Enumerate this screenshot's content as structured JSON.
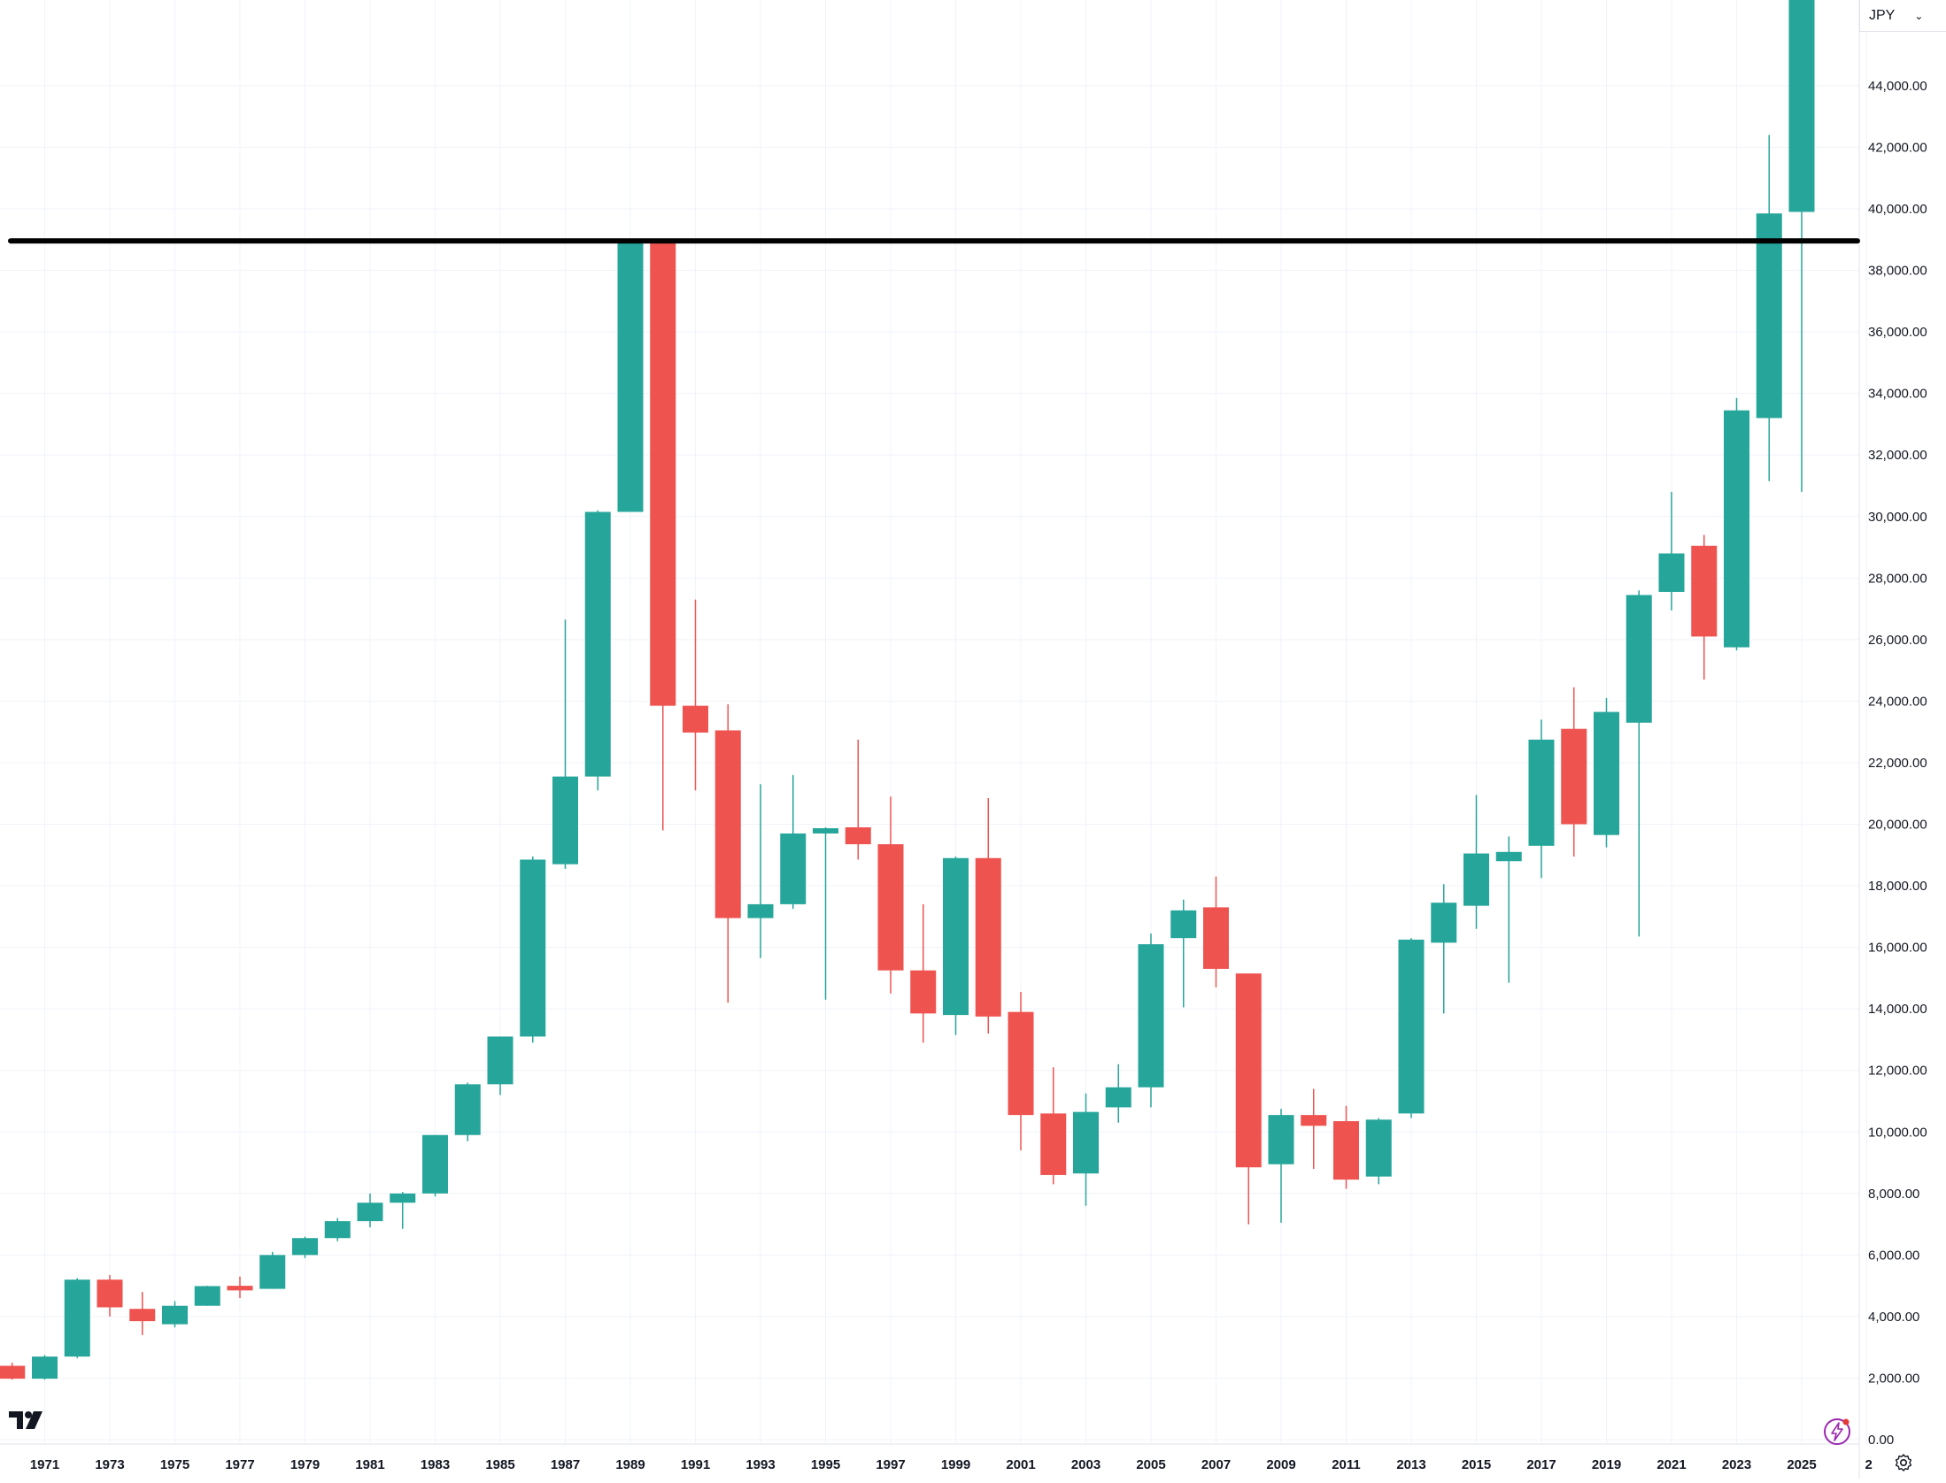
{
  "header": {
    "currency": "JPY"
  },
  "colors": {
    "up": "#26a69a",
    "down": "#ef5350",
    "grid": "#f0f3fa",
    "axis": "#e0e3eb",
    "level_line": "#000000",
    "flash_icon": "#9c27b0"
  },
  "icons": {
    "logo": "tradingview-logo-icon",
    "flash": "lightning-circle-icon",
    "settings": "gear-icon",
    "currency_dropdown": "chevron-down-icon"
  },
  "chart_data": {
    "type": "candlestick",
    "interval": "yearly",
    "y_axis": {
      "min": 0,
      "max": 47000,
      "position": "right",
      "ticks": [
        "0.00",
        "2,000.00",
        "4,000.00",
        "6,000.00",
        "8,000.00",
        "10,000.00",
        "12,000.00",
        "14,000.00",
        "16,000.00",
        "18,000.00",
        "20,000.00",
        "22,000.00",
        "24,000.00",
        "26,000.00",
        "28,000.00",
        "30,000.00",
        "32,000.00",
        "34,000.00",
        "36,000.00",
        "38,000.00",
        "40,000.00",
        "42,000.00",
        "44,000.00"
      ]
    },
    "x_axis": {
      "ticks": [
        "1971",
        "1973",
        "1975",
        "1977",
        "1979",
        "1981",
        "1983",
        "1985",
        "1987",
        "1989",
        "1991",
        "1993",
        "1995",
        "1997",
        "1999",
        "2001",
        "2003",
        "2005",
        "2007",
        "2009",
        "2011",
        "2013",
        "2015",
        "2017",
        "2019",
        "2021",
        "2023",
        "2025",
        "2"
      ]
    },
    "grid": true,
    "horizontal_line": {
      "value": 38957
    },
    "candles": [
      {
        "year": 1970,
        "open": 2400,
        "high": 2500,
        "low": 1950,
        "close": 1980
      },
      {
        "year": 1971,
        "open": 1980,
        "high": 2750,
        "low": 1950,
        "close": 2700
      },
      {
        "year": 1972,
        "open": 2700,
        "high": 5250,
        "low": 2650,
        "close": 5200
      },
      {
        "year": 1973,
        "open": 5200,
        "high": 5350,
        "low": 4000,
        "close": 4300
      },
      {
        "year": 1974,
        "open": 4250,
        "high": 4800,
        "low": 3400,
        "close": 3850
      },
      {
        "year": 1975,
        "open": 3750,
        "high": 4500,
        "low": 3650,
        "close": 4350
      },
      {
        "year": 1976,
        "open": 4350,
        "high": 5000,
        "low": 4350,
        "close": 4990
      },
      {
        "year": 1977,
        "open": 5000,
        "high": 5300,
        "low": 4600,
        "close": 4850
      },
      {
        "year": 1978,
        "open": 4900,
        "high": 6100,
        "low": 4900,
        "close": 6000
      },
      {
        "year": 1979,
        "open": 6000,
        "high": 6600,
        "low": 5900,
        "close": 6550
      },
      {
        "year": 1980,
        "open": 6550,
        "high": 7200,
        "low": 6450,
        "close": 7100
      },
      {
        "year": 1981,
        "open": 7100,
        "high": 8000,
        "low": 6900,
        "close": 7700
      },
      {
        "year": 1982,
        "open": 7700,
        "high": 8050,
        "low": 6850,
        "close": 8000
      },
      {
        "year": 1983,
        "open": 8000,
        "high": 9900,
        "low": 7900,
        "close": 9900
      },
      {
        "year": 1984,
        "open": 9900,
        "high": 11600,
        "low": 9700,
        "close": 11550
      },
      {
        "year": 1985,
        "open": 11550,
        "high": 13100,
        "low": 11200,
        "close": 13100
      },
      {
        "year": 1986,
        "open": 13100,
        "high": 18950,
        "low": 12900,
        "close": 18850
      },
      {
        "year": 1987,
        "open": 18700,
        "high": 26650,
        "low": 18550,
        "close": 21550
      },
      {
        "year": 1988,
        "open": 21550,
        "high": 30200,
        "low": 21100,
        "close": 30150
      },
      {
        "year": 1989,
        "open": 30150,
        "high": 38957,
        "low": 30150,
        "close": 38915
      },
      {
        "year": 1990,
        "open": 38915,
        "high": 38950,
        "low": 19800,
        "close": 23850
      },
      {
        "year": 1991,
        "open": 23850,
        "high": 27300,
        "low": 21100,
        "close": 22980
      },
      {
        "year": 1992,
        "open": 23050,
        "high": 23900,
        "low": 14200,
        "close": 16950
      },
      {
        "year": 1993,
        "open": 16950,
        "high": 21300,
        "low": 15650,
        "close": 17400
      },
      {
        "year": 1994,
        "open": 17400,
        "high": 21600,
        "low": 17250,
        "close": 19700
      },
      {
        "year": 1995,
        "open": 19700,
        "high": 19900,
        "low": 14300,
        "close": 19870
      },
      {
        "year": 1996,
        "open": 19900,
        "high": 22750,
        "low": 18850,
        "close": 19350
      },
      {
        "year": 1997,
        "open": 19350,
        "high": 20900,
        "low": 14500,
        "close": 15250
      },
      {
        "year": 1998,
        "open": 15250,
        "high": 17400,
        "low": 12900,
        "close": 13850
      },
      {
        "year": 1999,
        "open": 13800,
        "high": 18950,
        "low": 13150,
        "close": 18900
      },
      {
        "year": 2000,
        "open": 18900,
        "high": 20850,
        "low": 13200,
        "close": 13750
      },
      {
        "year": 2001,
        "open": 13900,
        "high": 14550,
        "low": 9400,
        "close": 10550
      },
      {
        "year": 2002,
        "open": 10600,
        "high": 12100,
        "low": 8300,
        "close": 8600
      },
      {
        "year": 2003,
        "open": 8650,
        "high": 11250,
        "low": 7600,
        "close": 10650
      },
      {
        "year": 2004,
        "open": 10800,
        "high": 12200,
        "low": 10300,
        "close": 11450
      },
      {
        "year": 2005,
        "open": 11450,
        "high": 16450,
        "low": 10800,
        "close": 16100
      },
      {
        "year": 2006,
        "open": 16300,
        "high": 17550,
        "low": 14050,
        "close": 17200
      },
      {
        "year": 2007,
        "open": 17300,
        "high": 18300,
        "low": 14700,
        "close": 15300
      },
      {
        "year": 2008,
        "open": 15150,
        "high": 15150,
        "low": 7000,
        "close": 8850
      },
      {
        "year": 2009,
        "open": 8950,
        "high": 10750,
        "low": 7050,
        "close": 10550
      },
      {
        "year": 2010,
        "open": 10550,
        "high": 11400,
        "low": 8800,
        "close": 10200
      },
      {
        "year": 2011,
        "open": 10350,
        "high": 10850,
        "low": 8150,
        "close": 8450
      },
      {
        "year": 2012,
        "open": 8550,
        "high": 10450,
        "low": 8300,
        "close": 10400
      },
      {
        "year": 2013,
        "open": 10600,
        "high": 16300,
        "low": 10450,
        "close": 16250
      },
      {
        "year": 2014,
        "open": 16150,
        "high": 18050,
        "low": 13850,
        "close": 17450
      },
      {
        "year": 2015,
        "open": 17350,
        "high": 20950,
        "low": 16600,
        "close": 19050
      },
      {
        "year": 2016,
        "open": 18800,
        "high": 19600,
        "low": 14850,
        "close": 19100
      },
      {
        "year": 2017,
        "open": 19300,
        "high": 23400,
        "low": 18250,
        "close": 22750
      },
      {
        "year": 2018,
        "open": 23100,
        "high": 24450,
        "low": 18950,
        "close": 20000
      },
      {
        "year": 2019,
        "open": 19650,
        "high": 24100,
        "low": 19250,
        "close": 23650
      },
      {
        "year": 2020,
        "open": 23300,
        "high": 27600,
        "low": 16350,
        "close": 27450
      },
      {
        "year": 2021,
        "open": 27550,
        "high": 30800,
        "low": 26950,
        "close": 28800
      },
      {
        "year": 2022,
        "open": 29050,
        "high": 29400,
        "low": 24700,
        "close": 26100
      },
      {
        "year": 2023,
        "open": 25750,
        "high": 33850,
        "low": 25650,
        "close": 33450
      },
      {
        "year": 2024,
        "open": 33200,
        "high": 42400,
        "low": 31150,
        "close": 39850
      },
      {
        "year": 2025,
        "open": 39900,
        "high": 48000,
        "low": 30800,
        "close": 48000
      }
    ]
  }
}
